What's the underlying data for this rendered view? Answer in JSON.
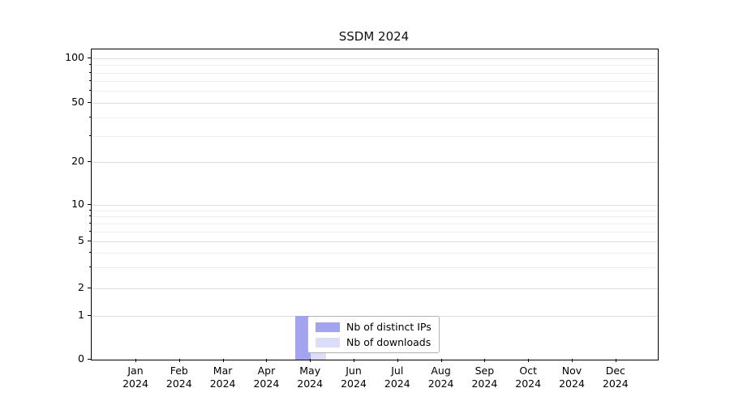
{
  "chart_data": {
    "type": "bar",
    "title": "SSDM 2024",
    "year": "2024",
    "categories": [
      "Jan",
      "Feb",
      "Mar",
      "Apr",
      "May",
      "Jun",
      "Jul",
      "Aug",
      "Sep",
      "Oct",
      "Nov",
      "Dec"
    ],
    "series": [
      {
        "name": "Nb of distinct IPs",
        "color": "#a2a4ee",
        "values": [
          0,
          0,
          0,
          0,
          1,
          0,
          0,
          0,
          0,
          0,
          0,
          0
        ]
      },
      {
        "name": "Nb of downloads",
        "color": "#dcddf9",
        "values": [
          0,
          0,
          0,
          0,
          1,
          0,
          0,
          0,
          0,
          0,
          0,
          0
        ]
      }
    ],
    "yticks": [
      0,
      1,
      2,
      5,
      10,
      20,
      50,
      100
    ],
    "grid_major": [
      1,
      2,
      5,
      10,
      20,
      50,
      100
    ],
    "grid_minor": [
      3,
      4,
      6,
      7,
      8,
      9,
      30,
      40,
      60,
      70,
      80,
      90
    ],
    "scale": "symlog",
    "ylim": [
      0,
      110
    ],
    "grid": true,
    "legend_position": "lower center"
  }
}
